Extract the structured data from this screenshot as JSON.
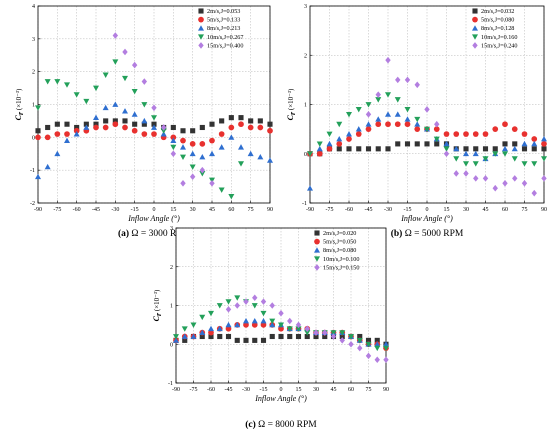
{
  "chart_data": [
    {
      "type": "scatter",
      "caption_label": "(a)",
      "caption_text": "Ω = 3000 RPM",
      "xlabel": "Inflow Angle (°)",
      "ylabel": "C",
      "ylabel_sub": "r",
      "ylabel_unit": "(×10⁻³)",
      "xlim": [
        -90,
        90
      ],
      "ylim": [
        -2,
        4
      ],
      "xticks": [
        -90,
        -75,
        -60,
        -45,
        -30,
        -15,
        0,
        15,
        30,
        45,
        60,
        75,
        90
      ],
      "yticks": [
        -2,
        -1,
        0,
        1,
        2,
        3,
        4
      ],
      "grid": true,
      "legend_position": "top-right",
      "x": [
        -90,
        -82.5,
        -75,
        -67.5,
        -60,
        -52.5,
        -45,
        -37.5,
        -30,
        -22.5,
        -15,
        -7.5,
        0,
        7.5,
        15,
        22.5,
        30,
        37.5,
        45,
        52.5,
        60,
        67.5,
        75,
        82.5,
        90
      ],
      "series": [
        {
          "name": "2m/s,J=0.053",
          "marker": "square",
          "color": "#333333",
          "values": [
            0.2,
            0.3,
            0.4,
            0.4,
            0.3,
            0.4,
            0.4,
            0.5,
            0.5,
            0.5,
            0.4,
            0.4,
            0.4,
            0.3,
            0.3,
            0.2,
            0.2,
            0.3,
            0.4,
            0.5,
            0.6,
            0.6,
            0.5,
            0.5,
            0.4
          ]
        },
        {
          "name": "5m/s,J=0.133",
          "marker": "circle",
          "color": "#e8312f",
          "values": [
            0.0,
            0.0,
            0.1,
            0.1,
            0.2,
            0.2,
            0.3,
            0.3,
            0.4,
            0.3,
            0.2,
            0.1,
            0.1,
            0.0,
            0.0,
            -0.1,
            -0.2,
            -0.2,
            -0.1,
            0.1,
            0.3,
            0.4,
            0.3,
            0.3,
            0.2
          ]
        },
        {
          "name": "8m/s,J=0.213",
          "marker": "triangle-up",
          "color": "#2f6fd0",
          "values": [
            -1.2,
            -0.9,
            -0.5,
            -0.1,
            0.1,
            0.3,
            0.6,
            0.9,
            1.0,
            0.8,
            0.7,
            0.5,
            0.3,
            0.1,
            -0.1,
            -0.3,
            -0.5,
            -0.6,
            -0.5,
            -0.3,
            0.0,
            -0.3,
            -0.5,
            -0.6,
            -0.7
          ]
        },
        {
          "name": "10m/s,J=0.267",
          "marker": "triangle-down",
          "color": "#23a05a",
          "values": [
            0.9,
            1.7,
            1.7,
            1.6,
            1.3,
            1.1,
            1.5,
            1.9,
            2.3,
            1.8,
            1.4,
            1.0,
            0.6,
            0.2,
            -0.3,
            -0.6,
            -0.9,
            -1.1,
            -1.3,
            -1.6,
            -1.8,
            -0.8,
            null,
            null,
            null
          ]
        },
        {
          "name": "15m/s,J=0.400",
          "marker": "diamond",
          "color": "#b37ee0",
          "values": [
            null,
            null,
            null,
            null,
            null,
            null,
            null,
            null,
            3.1,
            2.6,
            2.2,
            1.7,
            0.9,
            0.3,
            -0.5,
            -1.4,
            -1.2,
            -1.0,
            -1.4,
            null,
            null,
            null,
            null,
            null,
            null
          ]
        }
      ]
    },
    {
      "type": "scatter",
      "caption_label": "(b)",
      "caption_text": "Ω = 5000 RPM",
      "xlabel": "Inflow Angle (°)",
      "ylabel": "C",
      "ylabel_sub": "r",
      "ylabel_unit": "(×10⁻³)",
      "xlim": [
        -90,
        90
      ],
      "ylim": [
        -1,
        3
      ],
      "xticks": [
        -90,
        -75,
        -60,
        -45,
        -30,
        -15,
        0,
        15,
        30,
        45,
        60,
        75,
        90
      ],
      "yticks": [
        -1,
        0,
        1,
        2,
        3
      ],
      "grid": true,
      "legend_position": "top-right",
      "x": [
        -90,
        -82.5,
        -75,
        -67.5,
        -60,
        -52.5,
        -45,
        -37.5,
        -30,
        -22.5,
        -15,
        -7.5,
        0,
        7.5,
        15,
        22.5,
        30,
        37.5,
        45,
        52.5,
        60,
        67.5,
        75,
        82.5,
        90
      ],
      "series": [
        {
          "name": "2m/s,J=0.032",
          "marker": "square",
          "color": "#333333",
          "values": [
            0.0,
            0.0,
            0.1,
            0.1,
            0.1,
            0.1,
            0.1,
            0.1,
            0.1,
            0.2,
            0.2,
            0.2,
            0.2,
            0.2,
            0.2,
            0.1,
            0.1,
            0.1,
            0.1,
            0.1,
            0.2,
            0.2,
            0.1,
            0.1,
            0.1
          ]
        },
        {
          "name": "5m/s,J=0.080",
          "marker": "circle",
          "color": "#e8312f",
          "values": [
            0.0,
            0.0,
            0.1,
            0.2,
            0.3,
            0.4,
            0.5,
            0.6,
            0.6,
            0.6,
            0.6,
            0.5,
            0.5,
            0.5,
            0.4,
            0.4,
            0.4,
            0.4,
            0.4,
            0.5,
            0.6,
            0.5,
            0.4,
            0.3,
            0.2
          ]
        },
        {
          "name": "8m/s,J=0.128",
          "marker": "triangle-up",
          "color": "#2f6fd0",
          "values": [
            -0.7,
            0.1,
            0.2,
            0.3,
            0.4,
            0.5,
            0.6,
            0.7,
            0.8,
            0.8,
            0.7,
            0.6,
            0.5,
            0.3,
            0.2,
            0.1,
            0.0,
            0.0,
            -0.1,
            0.0,
            0.1,
            0.1,
            0.2,
            0.2,
            0.3
          ]
        },
        {
          "name": "10m/s,J=0.160",
          "marker": "triangle-down",
          "color": "#23a05a",
          "values": [
            0.0,
            0.2,
            0.4,
            0.6,
            0.8,
            0.9,
            1.0,
            1.1,
            1.2,
            1.1,
            0.9,
            0.7,
            0.5,
            0.3,
            0.1,
            -0.1,
            -0.2,
            -0.2,
            -0.1,
            0.0,
            0.0,
            -0.1,
            -0.2,
            -0.2,
            -0.1
          ]
        },
        {
          "name": "15m/s,J=0.240",
          "marker": "diamond",
          "color": "#b37ee0",
          "values": [
            null,
            null,
            null,
            null,
            null,
            null,
            0.8,
            1.2,
            1.9,
            1.5,
            1.5,
            1.4,
            0.9,
            0.6,
            0.0,
            -0.4,
            -0.4,
            -0.5,
            -0.5,
            -0.7,
            -0.6,
            -0.5,
            -0.6,
            -0.8,
            -0.5
          ]
        }
      ]
    },
    {
      "type": "scatter",
      "caption_label": "(c)",
      "caption_text": "Ω = 8000 RPM",
      "xlabel": "Inflow Angle (°)",
      "ylabel": "C",
      "ylabel_sub": "r",
      "ylabel_unit": "(×10⁻³)",
      "xlim": [
        -90,
        90
      ],
      "ylim": [
        -1,
        3
      ],
      "xticks": [
        -90,
        -75,
        -60,
        -45,
        -30,
        -15,
        0,
        15,
        30,
        45,
        60,
        75,
        90
      ],
      "yticks": [
        -1,
        0,
        1,
        2,
        3
      ],
      "grid": true,
      "legend_position": "top-right",
      "x": [
        -90,
        -82.5,
        -75,
        -67.5,
        -60,
        -52.5,
        -45,
        -37.5,
        -30,
        -22.5,
        -15,
        -7.5,
        0,
        7.5,
        15,
        22.5,
        30,
        37.5,
        45,
        52.5,
        60,
        67.5,
        75,
        82.5,
        90
      ],
      "series": [
        {
          "name": "2m/s,J=0.020",
          "marker": "square",
          "color": "#333333",
          "values": [
            0.1,
            0.1,
            0.2,
            0.2,
            0.2,
            0.2,
            0.2,
            0.1,
            0.1,
            0.1,
            0.1,
            0.2,
            0.2,
            0.2,
            0.2,
            0.2,
            0.2,
            0.2,
            0.2,
            0.2,
            0.2,
            0.2,
            0.1,
            0.1,
            0.0
          ]
        },
        {
          "name": "5m/s,J=0.050",
          "marker": "circle",
          "color": "#e8312f",
          "values": [
            0.1,
            0.2,
            0.2,
            0.3,
            0.3,
            0.4,
            0.4,
            0.5,
            0.5,
            0.5,
            0.5,
            0.5,
            0.4,
            0.4,
            0.4,
            0.4,
            0.3,
            0.3,
            0.3,
            0.3,
            0.2,
            0.1,
            0.0,
            0.0,
            -0.1
          ]
        },
        {
          "name": "8m/s,J=0.080",
          "marker": "triangle-up",
          "color": "#2f6fd0",
          "values": [
            0.1,
            0.2,
            0.2,
            0.3,
            0.4,
            0.4,
            0.5,
            0.5,
            0.6,
            0.6,
            0.6,
            0.5,
            0.5,
            0.4,
            0.4,
            0.4,
            0.3,
            0.3,
            0.3,
            0.3,
            0.2,
            0.1,
            0.0,
            0.0,
            0.0
          ]
        },
        {
          "name": "10m/s,J=0.100",
          "marker": "triangle-down",
          "color": "#23a05a",
          "values": [
            0.2,
            0.4,
            0.5,
            0.7,
            0.8,
            1.0,
            1.1,
            1.2,
            1.1,
            1.0,
            0.8,
            0.6,
            0.5,
            0.4,
            0.4,
            0.3,
            0.3,
            0.3,
            0.3,
            0.3,
            0.2,
            0.1,
            0.0,
            -0.1,
            -0.1
          ]
        },
        {
          "name": "15m/s,J=0.150",
          "marker": "diamond",
          "color": "#b37ee0",
          "values": [
            null,
            null,
            null,
            null,
            null,
            null,
            0.9,
            1.0,
            1.1,
            1.2,
            1.1,
            1.0,
            0.8,
            0.6,
            0.5,
            0.4,
            0.3,
            0.3,
            0.2,
            0.1,
            0.0,
            -0.1,
            -0.3,
            -0.4,
            -0.4
          ]
        }
      ]
    }
  ]
}
